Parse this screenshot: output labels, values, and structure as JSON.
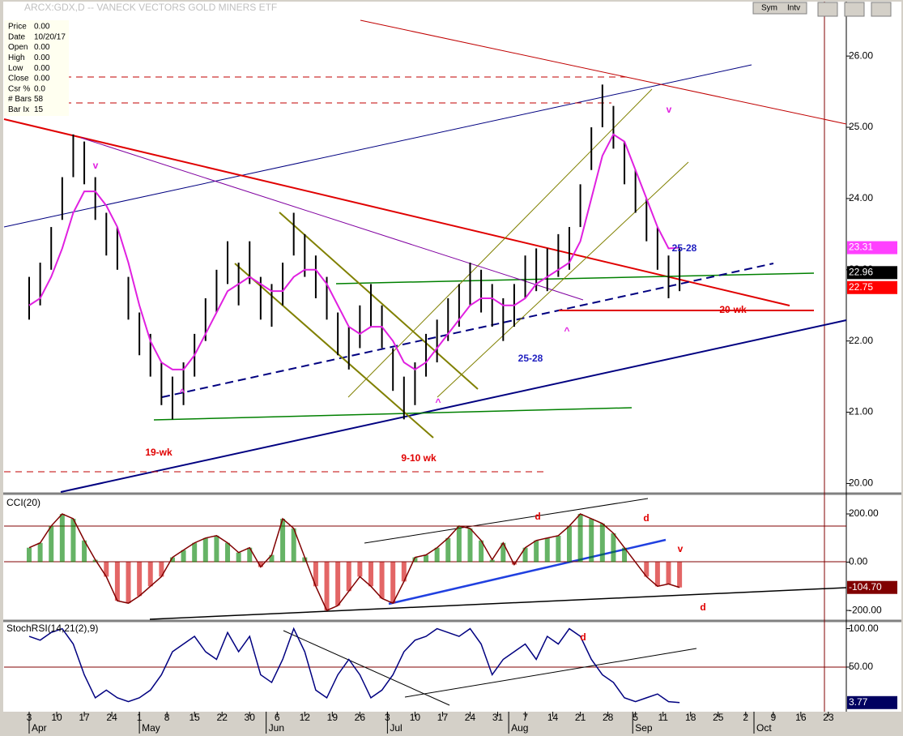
{
  "chart_data": {
    "type": "ohlc",
    "title": "ARCX:GDX,D -- VANECK VECTORS GOLD MINERS ETF",
    "toolbar": [
      "Sym",
      "Intv"
    ],
    "info": [
      [
        "Price",
        "0.00"
      ],
      [
        "Date",
        "10/20/17"
      ],
      [
        "Open",
        "0.00"
      ],
      [
        "High",
        "0.00"
      ],
      [
        "Low",
        "0.00"
      ],
      [
        "Close",
        "0.00"
      ],
      [
        "Csr %",
        "0.0"
      ],
      [
        "# Bars",
        "58"
      ],
      [
        "Bar Ix",
        "15"
      ]
    ],
    "x": [
      0,
      0.4,
      0.8,
      1.2,
      1.6,
      2,
      2.4,
      2.8,
      3.2,
      3.6,
      4,
      4.4,
      4.8,
      5.2,
      5.6,
      6,
      6.4,
      6.8,
      7.2,
      7.6,
      8,
      8.4,
      8.8,
      9.2,
      9.6,
      10,
      10.4,
      10.8,
      11.2,
      11.6,
      12,
      12.4,
      12.8,
      13.2,
      13.6,
      14,
      14.4,
      14.8,
      15.2,
      15.6,
      16,
      16.4,
      16.8,
      17.2,
      17.6,
      18,
      18.4,
      18.8,
      19.2,
      19.6,
      20,
      20.4,
      20.8,
      21.2,
      21.6,
      22,
      22.4,
      22.8,
      23.2,
      23.6
    ],
    "high": [
      22.9,
      23.1,
      23.6,
      24.3,
      24.9,
      24.8,
      24.3,
      23.8,
      23.6,
      22.9,
      22.4,
      22.1,
      21.7,
      21.5,
      21.7,
      22.1,
      22.6,
      23.0,
      23.4,
      23.1,
      23.4,
      22.9,
      22.8,
      23.1,
      23.8,
      23.5,
      23.2,
      22.9,
      22.4,
      22.2,
      22.5,
      22.8,
      22.5,
      21.9,
      21.5,
      21.7,
      22.1,
      22.3,
      22.6,
      22.8,
      23.1,
      23.0,
      22.8,
      22.6,
      22.8,
      23.2,
      23.3,
      23.3,
      23.5,
      23.6,
      24.2,
      25.0,
      25.6,
      25.3,
      24.8,
      24.4,
      24.0,
      23.6,
      23.2,
      23.3
    ],
    "low": [
      22.3,
      22.5,
      23.0,
      23.7,
      24.3,
      24.2,
      23.7,
      23.2,
      23.0,
      22.3,
      21.8,
      21.5,
      21.1,
      20.9,
      21.1,
      21.5,
      22.0,
      22.4,
      22.8,
      22.5,
      22.8,
      22.3,
      22.2,
      22.5,
      23.2,
      22.9,
      22.6,
      22.3,
      21.8,
      21.6,
      21.9,
      22.2,
      21.9,
      21.3,
      20.9,
      21.1,
      21.5,
      21.7,
      22.0,
      22.2,
      22.5,
      22.4,
      22.2,
      22.0,
      22.2,
      22.6,
      22.7,
      22.7,
      22.9,
      23.0,
      23.6,
      24.4,
      25.0,
      24.7,
      24.2,
      23.8,
      23.4,
      23.0,
      22.6,
      22.7
    ],
    "ma": {
      "color": "#e020e0",
      "values": [
        22.5,
        22.6,
        22.9,
        23.3,
        23.8,
        24.1,
        24.1,
        23.9,
        23.6,
        23.1,
        22.5,
        22.0,
        21.7,
        21.6,
        21.6,
        21.8,
        22.1,
        22.4,
        22.7,
        22.8,
        22.9,
        22.8,
        22.7,
        22.7,
        22.9,
        23.0,
        23.0,
        22.8,
        22.5,
        22.2,
        22.1,
        22.2,
        22.2,
        22.0,
        21.7,
        21.6,
        21.7,
        21.9,
        22.1,
        22.3,
        22.5,
        22.6,
        22.6,
        22.5,
        22.5,
        22.6,
        22.8,
        22.9,
        23.0,
        23.1,
        23.4,
        24.0,
        24.6,
        24.9,
        24.8,
        24.4,
        24.0,
        23.6,
        23.3,
        23.31
      ]
    },
    "ylim": [
      19.88,
      26.73
    ],
    "yticks": [
      {
        "value": 20,
        "label": "20.00"
      },
      {
        "value": 21,
        "label": "21.00"
      },
      {
        "value": 22,
        "label": "22.00"
      },
      {
        "value": 23,
        "label": "23.00"
      },
      {
        "value": 24,
        "label": "24.00"
      },
      {
        "value": 25,
        "label": "25.00"
      },
      {
        "value": 26,
        "label": "26.00"
      }
    ],
    "price_labels": [
      {
        "value": 23.31,
        "label": "23.31",
        "color": "#ff40ff"
      },
      {
        "value": 22.96,
        "label": "22.96",
        "color": "#000000"
      },
      {
        "value": 22.75,
        "label": "22.75",
        "color": "#ff0000"
      }
    ],
    "annotations": [
      {
        "text": "v",
        "color": "#e020e0"
      },
      {
        "text": "v",
        "color": "#e020e0"
      },
      {
        "text": "^",
        "color": "#e020e0"
      },
      {
        "text": "^",
        "color": "#e020e0"
      },
      {
        "text": "^",
        "color": "#e020e0"
      },
      {
        "text": "19-wk",
        "color": "#e00000"
      },
      {
        "text": "9-10 wk",
        "color": "#e00000"
      },
      {
        "text": "20-wk",
        "color": "#e00000"
      },
      {
        "text": "25-28",
        "color": "#2020c0"
      },
      {
        "text": "25-28",
        "color": "#2020c0"
      }
    ],
    "cci": {
      "name": "CCI(20)",
      "values": [
        60,
        80,
        150,
        200,
        180,
        90,
        10,
        -60,
        -160,
        -170,
        -140,
        -100,
        -60,
        20,
        50,
        80,
        100,
        110,
        80,
        40,
        60,
        -20,
        30,
        180,
        140,
        20,
        -100,
        -200,
        -180,
        -120,
        -60,
        -100,
        -150,
        -170,
        -80,
        20,
        30,
        60,
        100,
        150,
        140,
        90,
        10,
        80,
        -10,
        60,
        90,
        100,
        110,
        150,
        200,
        180,
        160,
        120,
        60,
        0,
        -60,
        -100,
        -90,
        -104.7
      ],
      "value_label": "-104.70",
      "ylim": [
        -240,
        274
      ],
      "yticks": [
        {
          "value": 200,
          "label": "200.00"
        },
        {
          "value": 0,
          "label": "0.00"
        },
        {
          "value": -200,
          "label": "-200.00"
        }
      ],
      "annotations": [
        "d",
        "d",
        "v",
        "d"
      ]
    },
    "stoch": {
      "name": "StochRSI(14,21(2),9)",
      "values": [
        90,
        85,
        95,
        100,
        80,
        40,
        10,
        20,
        10,
        5,
        10,
        20,
        40,
        70,
        80,
        90,
        70,
        60,
        95,
        70,
        90,
        40,
        30,
        60,
        100,
        70,
        20,
        10,
        40,
        60,
        40,
        10,
        20,
        40,
        70,
        85,
        90,
        100,
        95,
        90,
        100,
        80,
        40,
        60,
        70,
        80,
        60,
        90,
        80,
        100,
        90,
        60,
        40,
        30,
        10,
        5,
        10,
        15,
        5,
        3.77
      ],
      "value_label": "3.77",
      "ylim": [
        -7,
        108
      ],
      "yticks": [
        {
          "value": 100,
          "label": "100.00"
        },
        {
          "value": 50,
          "label": "50.00"
        }
      ],
      "annotations": [
        "d"
      ]
    },
    "xticks": [
      {
        "value": 0,
        "label": "3"
      },
      {
        "value": 1,
        "label": "10"
      },
      {
        "value": 2,
        "label": "17"
      },
      {
        "value": 3,
        "label": "24"
      },
      {
        "value": 4,
        "label": "1"
      },
      {
        "value": 5,
        "label": "8"
      },
      {
        "value": 6,
        "label": "15"
      },
      {
        "value": 7,
        "label": "22"
      },
      {
        "value": 8,
        "label": "30"
      },
      {
        "value": 9,
        "label": "6"
      },
      {
        "value": 10,
        "label": "12"
      },
      {
        "value": 11,
        "label": "19"
      },
      {
        "value": 12,
        "label": "26"
      },
      {
        "value": 13,
        "label": "3"
      },
      {
        "value": 14,
        "label": "10"
      },
      {
        "value": 15,
        "label": "17"
      },
      {
        "value": 16,
        "label": "24"
      },
      {
        "value": 17,
        "label": "31"
      },
      {
        "value": 18,
        "label": "7"
      },
      {
        "value": 19,
        "label": "14"
      },
      {
        "value": 20,
        "label": "21"
      },
      {
        "value": 21,
        "label": "28"
      },
      {
        "value": 22,
        "label": "5"
      },
      {
        "value": 23,
        "label": "11"
      },
      {
        "value": 24,
        "label": "18"
      },
      {
        "value": 25,
        "label": "25"
      },
      {
        "value": 26,
        "label": "2"
      },
      {
        "value": 27,
        "label": "9"
      },
      {
        "value": 28,
        "label": "16"
      },
      {
        "value": 29,
        "label": "23"
      }
    ],
    "months": [
      {
        "value": 0,
        "label": "Apr"
      },
      {
        "value": 4,
        "label": "May"
      },
      {
        "value": 8.6,
        "label": "Jun"
      },
      {
        "value": 13,
        "label": "Jul"
      },
      {
        "value": 17.4,
        "label": "Aug"
      },
      {
        "value": 21.9,
        "label": "Sep"
      },
      {
        "value": 26.3,
        "label": "Oct"
      }
    ]
  }
}
